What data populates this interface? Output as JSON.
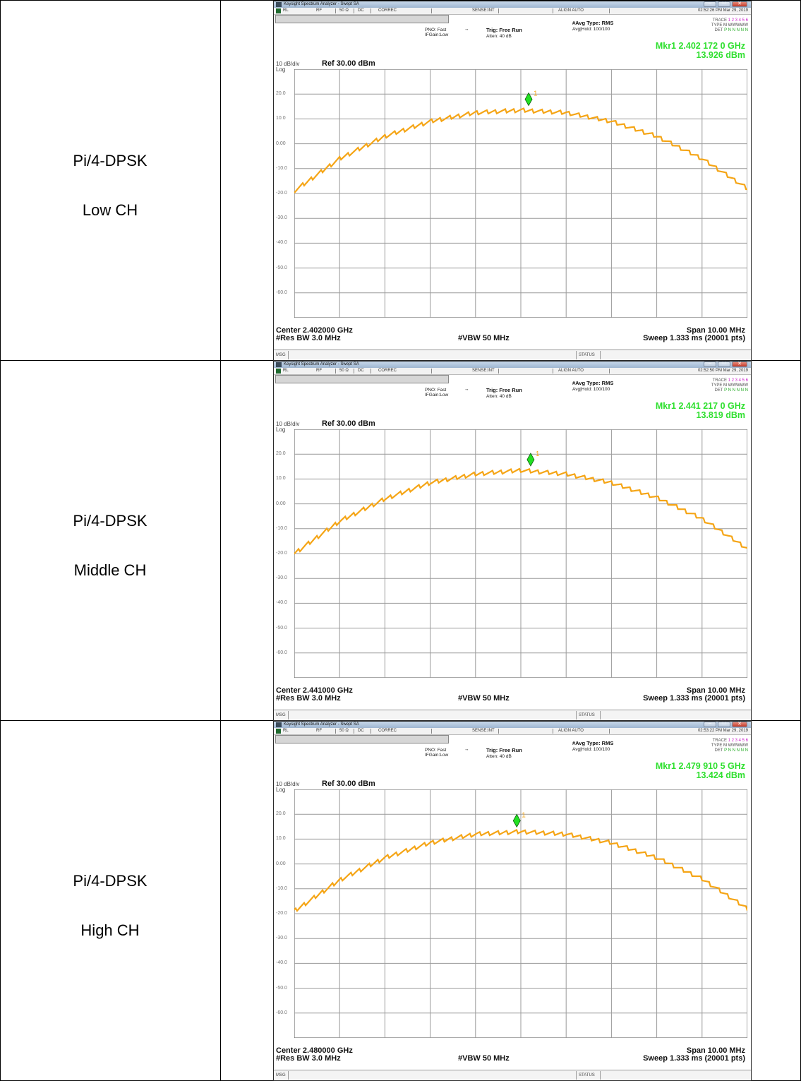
{
  "rows": [
    {
      "label_line1": "Pi/4-DPSK",
      "label_line2": "Low CH",
      "analyzer": {
        "window_title": "Keysight Spectrum Analyzer - Swept SA",
        "status": {
          "rl": "RL",
          "rf": "RF",
          "impedance": "50 Ω",
          "coupling": "DC",
          "correc": "CORREC",
          "sense": "SENSE:INT",
          "align": "ALIGN AUTO",
          "datetime": "02:52:26 PM Mar 29, 2019"
        },
        "pno": "PNO: Fast",
        "ifgain": "IFGain:Low",
        "trig": "Trig: Free Run",
        "atten": "Atten: 40 dB",
        "avg_type": "#Avg Type: RMS",
        "avg_hold": "Avg|Hold: 100/100",
        "trace_label": "TRACE",
        "trace_nums": "1 2 3 4 5 6",
        "type_label": "TYPE",
        "type_val": "M WWWWW",
        "det_label": "DET",
        "det_val": "P N N N N N",
        "marker_freq": "Mkr1 2.402 172 0 GHz",
        "marker_level": "13.926 dBm",
        "scale": "10 dB/div",
        "scale_type": "Log",
        "ref_level": "Ref 30.00 dBm",
        "center": "Center 2.402000 GHz",
        "res_bw": "#Res BW 3.0 MHz",
        "vbw": "#VBW 50 MHz",
        "span": "Span 10.00 MHz",
        "sweep": "Sweep  1.333 ms (20001 pts)",
        "msg": "MSG",
        "status_label": "STATUS",
        "marker_number": "1"
      }
    },
    {
      "label_line1": "Pi/4-DPSK",
      "label_line2": "Middle CH",
      "analyzer": {
        "window_title": "Keysight Spectrum Analyzer - Swept SA",
        "status": {
          "rl": "RL",
          "rf": "RF",
          "impedance": "50 Ω",
          "coupling": "DC",
          "correc": "CORREC",
          "sense": "SENSE:INT",
          "align": "ALIGN AUTO",
          "datetime": "02:52:50 PM Mar 29, 2019"
        },
        "pno": "PNO: Fast",
        "ifgain": "IFGain:Low",
        "trig": "Trig: Free Run",
        "atten": "Atten: 40 dB",
        "avg_type": "#Avg Type: RMS",
        "avg_hold": "Avg|Hold: 100/100",
        "trace_label": "TRACE",
        "trace_nums": "1 2 3 4 5 6",
        "type_label": "TYPE",
        "type_val": "M WWWWW",
        "det_label": "DET",
        "det_val": "P N N N N N",
        "marker_freq": "Mkr1 2.441 217 0 GHz",
        "marker_level": "13.819 dBm",
        "scale": "10 dB/div",
        "scale_type": "Log",
        "ref_level": "Ref 30.00 dBm",
        "center": "Center 2.441000 GHz",
        "res_bw": "#Res BW 3.0 MHz",
        "vbw": "#VBW 50 MHz",
        "span": "Span 10.00 MHz",
        "sweep": "Sweep  1.333 ms (20001 pts)",
        "msg": "MSG",
        "status_label": "STATUS",
        "marker_number": "1"
      }
    },
    {
      "label_line1": "Pi/4-DPSK",
      "label_line2": "High CH",
      "analyzer": {
        "window_title": "Keysight Spectrum Analyzer - Swept SA",
        "status": {
          "rl": "RL",
          "rf": "RF",
          "impedance": "50 Ω",
          "coupling": "DC",
          "correc": "CORREC",
          "sense": "SENSE:INT",
          "align": "ALIGN AUTO",
          "datetime": "02:53:22 PM Mar 29, 2019"
        },
        "pno": "PNO: Fast",
        "ifgain": "IFGain:Low",
        "trig": "Trig: Free Run",
        "atten": "Atten: 40 dB",
        "avg_type": "#Avg Type: RMS",
        "avg_hold": "Avg|Hold: 100/100",
        "trace_label": "TRACE",
        "trace_nums": "1 2 3 4 5 6",
        "type_label": "TYPE",
        "type_val": "M WWWWW",
        "det_label": "DET",
        "det_val": "P N N N N N",
        "marker_freq": "Mkr1 2.479 910 5 GHz",
        "marker_level": "13.424 dBm",
        "scale": "10 dB/div",
        "scale_type": "Log",
        "ref_level": "Ref 30.00 dBm",
        "center": "Center 2.480000 GHz",
        "res_bw": "#Res BW 3.0 MHz",
        "vbw": "#VBW 50 MHz",
        "span": "Span 10.00 MHz",
        "sweep": "Sweep  1.333 ms (20001 pts)",
        "msg": "MSG",
        "status_label": "STATUS",
        "marker_number": "1"
      }
    }
  ],
  "y_ticks": [
    "20.0",
    "10.0",
    "0.00",
    "-10.0",
    "-20.0",
    "-30.0",
    "-40.0",
    "-50.0",
    "-60.0"
  ],
  "chart_data": [
    {
      "type": "line",
      "x_unit": "GHz",
      "y_unit": "dBm",
      "ylim": [
        -70,
        30
      ],
      "x": [
        2.397,
        2.398,
        2.399,
        2.4,
        2.401,
        2.402,
        2.403,
        2.404,
        2.405,
        2.406,
        2.407
      ],
      "series": [
        {
          "values": [
            -19,
            -6,
            3,
            9,
            12.5,
            13.5,
            12.5,
            9,
            3,
            -6,
            -18
          ]
        }
      ],
      "marker": {
        "x": 2.402172,
        "y": 13.926
      },
      "grid": true,
      "trace_color": "#f5a516",
      "marker_color": "#22e022"
    },
    {
      "type": "line",
      "x_unit": "GHz",
      "y_unit": "dBm",
      "ylim": [
        -70,
        30
      ],
      "x": [
        2.436,
        2.437,
        2.438,
        2.439,
        2.44,
        2.441,
        2.442,
        2.443,
        2.444,
        2.445,
        2.446
      ],
      "series": [
        {
          "values": [
            -20,
            -7,
            2,
            8.5,
            12,
            13.5,
            12,
            8.5,
            2.5,
            -6,
            -18
          ]
        }
      ],
      "marker": {
        "x": 2.441217,
        "y": 13.819
      },
      "grid": true,
      "trace_color": "#f5a516",
      "marker_color": "#22e022"
    },
    {
      "type": "line",
      "x_unit": "GHz",
      "y_unit": "dBm",
      "ylim": [
        -70,
        30
      ],
      "x": [
        2.475,
        2.476,
        2.477,
        2.478,
        2.479,
        2.48,
        2.481,
        2.482,
        2.483,
        2.484,
        2.485
      ],
      "series": [
        {
          "values": [
            -19,
            -6.5,
            2.5,
            8.5,
            12,
            13,
            12,
            8.5,
            2.5,
            -6,
            -18
          ]
        }
      ],
      "marker": {
        "x": 2.4799105,
        "y": 13.424
      },
      "grid": true,
      "trace_color": "#f5a516",
      "marker_color": "#22e022"
    }
  ]
}
